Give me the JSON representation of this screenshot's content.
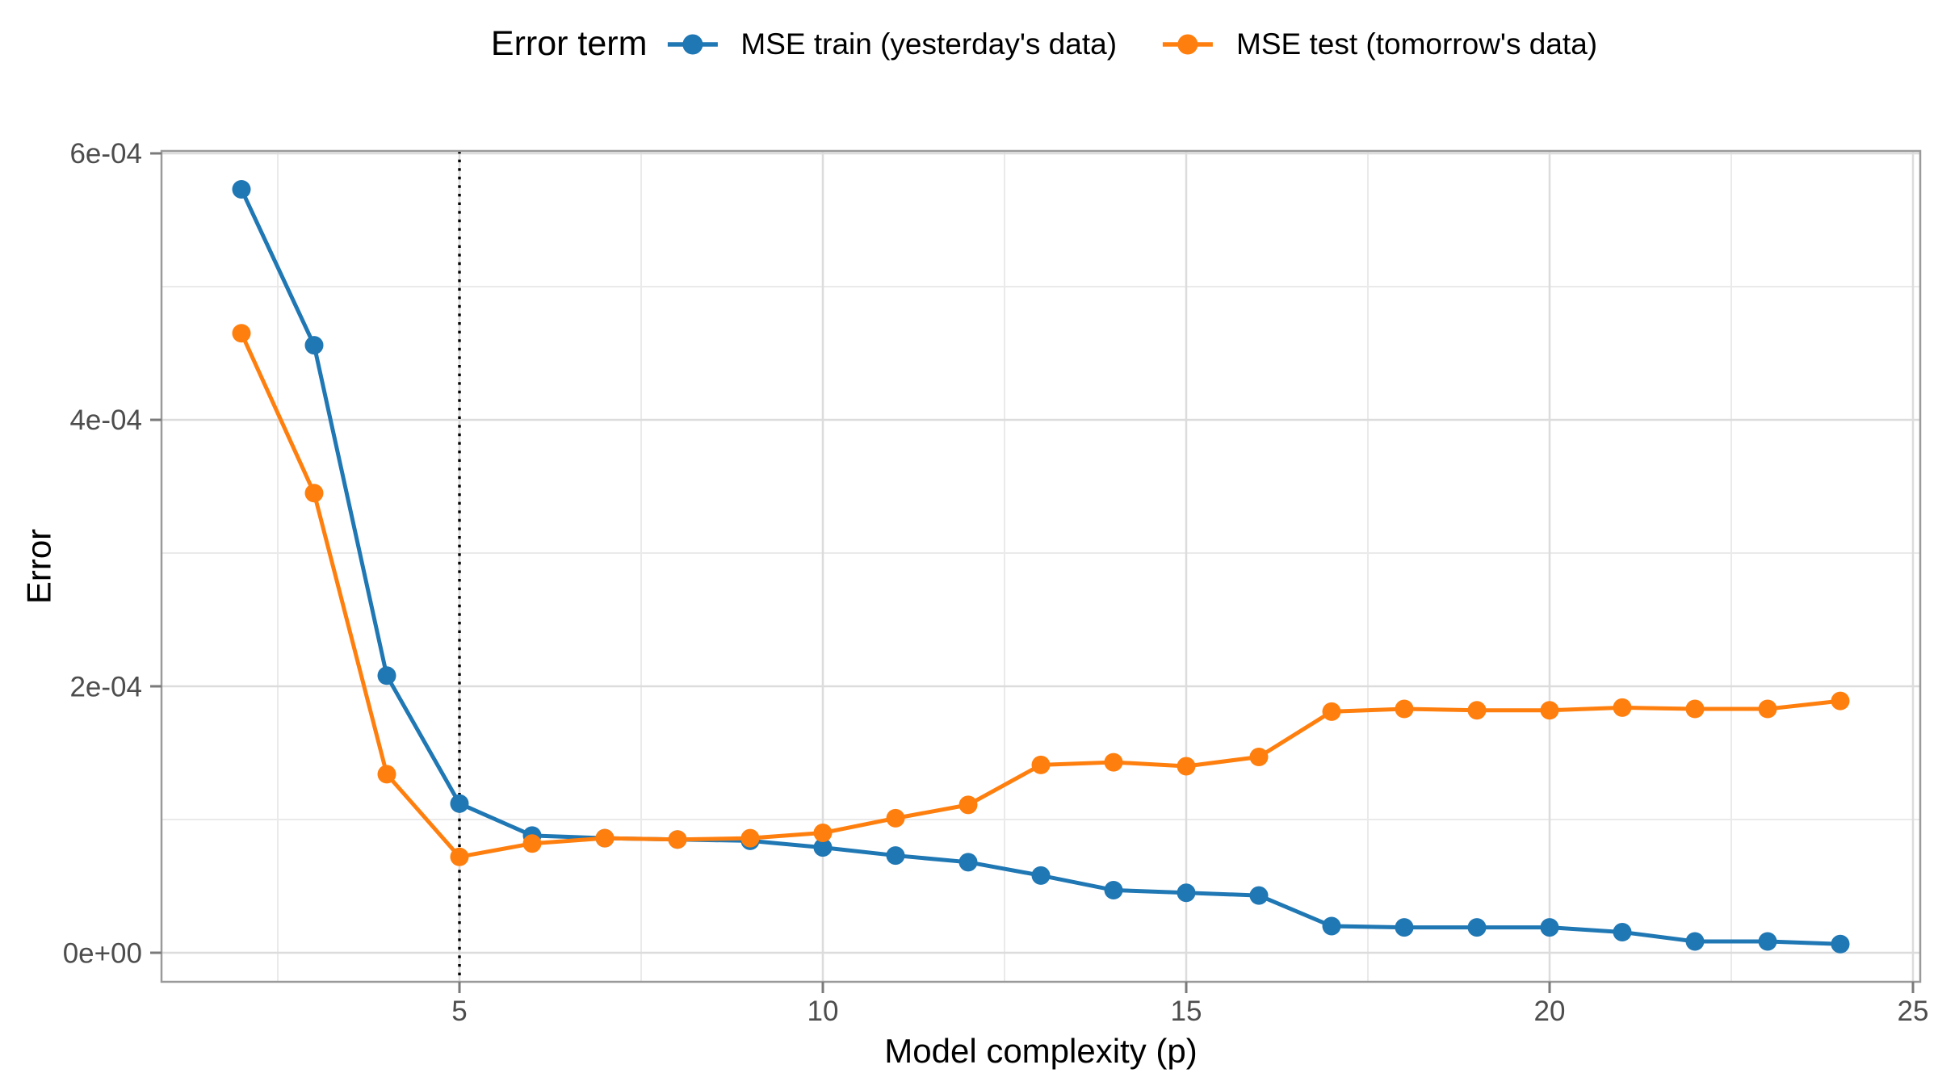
{
  "legend": {
    "title": "Error term",
    "items": [
      {
        "label": "MSE train (yesterday's data)",
        "color": "#1f77b4"
      },
      {
        "label": "MSE test (tomorrow's data)",
        "color": "#ff7f0e"
      }
    ]
  },
  "chart_data": {
    "type": "line",
    "title": "",
    "xlabel": "Model complexity (p)",
    "ylabel": "Error",
    "x": [
      2,
      3,
      4,
      5,
      6,
      7,
      8,
      9,
      10,
      11,
      12,
      13,
      14,
      15,
      16,
      17,
      18,
      19,
      20,
      21,
      22,
      23,
      24
    ],
    "series": [
      {
        "name": "MSE train (yesterday's data)",
        "color": "#1f77b4",
        "values": [
          0.000573,
          0.000456,
          0.000208,
          0.000112,
          8.8e-05,
          8.6e-05,
          8.5e-05,
          8.4e-05,
          7.9e-05,
          7.3e-05,
          6.8e-05,
          5.8e-05,
          4.7e-05,
          4.5e-05,
          4.3e-05,
          2e-05,
          1.9e-05,
          1.9e-05,
          1.9e-05,
          1.55e-05,
          8.5e-06,
          8.5e-06,
          6.5e-06
        ]
      },
      {
        "name": "MSE test (tomorrow's data)",
        "color": "#ff7f0e",
        "values": [
          0.000465,
          0.000345,
          0.000134,
          7.2e-05,
          8.2e-05,
          8.6e-05,
          8.5e-05,
          8.6e-05,
          9e-05,
          0.000101,
          0.000111,
          0.000141,
          0.000143,
          0.00014,
          0.000147,
          0.000181,
          0.000183,
          0.000182,
          0.000182,
          0.000184,
          0.000183,
          0.000183,
          0.000189
        ]
      }
    ],
    "xlim": [
      0.9,
      25.1
    ],
    "ylim": [
      -2.18e-05,
      0.0006018
    ],
    "x_ticks": [
      5,
      10,
      15,
      20,
      25
    ],
    "x_tick_labels": [
      "5",
      "10",
      "15",
      "20",
      "25"
    ],
    "x_minor": [
      2.5,
      7.5,
      12.5,
      17.5,
      22.5
    ],
    "y_ticks": [
      0,
      0.0002,
      0.0004,
      0.0006
    ],
    "y_tick_labels": [
      "0e+00",
      "2e-04",
      "4e-04",
      "6e-04"
    ],
    "y_minor": [
      0.0001,
      0.0003,
      0.0005
    ],
    "vline": {
      "x": 5,
      "style": "dotted",
      "color": "#000000"
    },
    "grid": true,
    "legend_position": "top",
    "colors": {
      "grid_major": "#dcdcdc",
      "grid_minor": "#eaeaea",
      "panel_border": "#9a9a9a",
      "tick_mark": "#7a7a7a",
      "tick_text": "#4d4d4d",
      "axis_title": "#000000"
    }
  }
}
